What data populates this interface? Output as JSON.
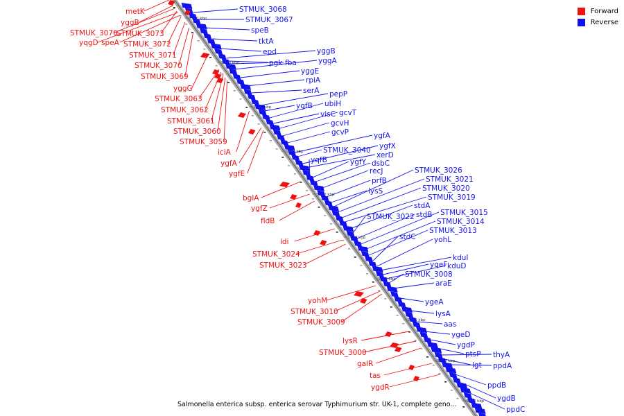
{
  "legend": {
    "forward": {
      "label": "Forward",
      "color": "#ee1111"
    },
    "reverse": {
      "label": "Reverse",
      "color": "#1111ee"
    }
  },
  "caption": "Salmonella enterica subsp. enterica serovar Typhimurium str. UK-1, complete geno...",
  "ticks": [
    "3210 kbp",
    "3200 kbp",
    "3190 kbp",
    "3180 kbp",
    "3170 kbp",
    "3160 kbp",
    "3150 kbp",
    "3140 kbp",
    "3130 kbp",
    "3120 kbp"
  ],
  "forward_labels": [
    "metK",
    "yggB",
    "STMUK_3076",
    "yqgD",
    "speA",
    "STMUK_3073",
    "STMUK_3072",
    "STMUK_3071",
    "STMUK_3070",
    "STMUK_3069",
    "yggG",
    "STMUK_3063",
    "STMUK_3062",
    "STMUK_3061",
    "STMUK_3060",
    "STMUK_3059",
    "iciA",
    "ygfA",
    "ygfE",
    "bglA",
    "ygfZ",
    "fldB",
    "idi",
    "STMUK_3024",
    "STMUK_3023",
    "yohM",
    "STMUK_3010",
    "STMUK_3009",
    "lysR",
    "STMUK_3000",
    "galR",
    "tas",
    "ygdR"
  ],
  "reverse_labels": [
    "STMUK_3068",
    "STMUK_3067",
    "speB",
    "tktA",
    "epd",
    "yggB",
    "pgk",
    "fba",
    "yggA",
    "yggE",
    "rpiA",
    "serA",
    "pepP",
    "ygfB",
    "ubiH",
    "visC",
    "gcvT",
    "gcvH",
    "gcvP",
    "ygfA",
    "STMUK_3040",
    "ygfX",
    "xerD",
    "yqfB",
    "ygfY",
    "dsbC",
    "recJ",
    "prfB",
    "lysS",
    "STMUK_3026",
    "STMUK_3021",
    "STMUK_3020",
    "STMUK_3019",
    "stdA",
    "STMUK_3022",
    "stdB",
    "STMUK_3015",
    "STMUK_3014",
    "STMUK_3013",
    "stdC",
    "yohL",
    "kduI",
    "yqeF",
    "kduD",
    "STMUK_3008",
    "araE",
    "ygeA",
    "lysA",
    "aas",
    "ygeD",
    "ygdP",
    "ptsP",
    "thyA",
    "lgt",
    "ppdA",
    "ppdB",
    "ygdB",
    "ppdC"
  ]
}
